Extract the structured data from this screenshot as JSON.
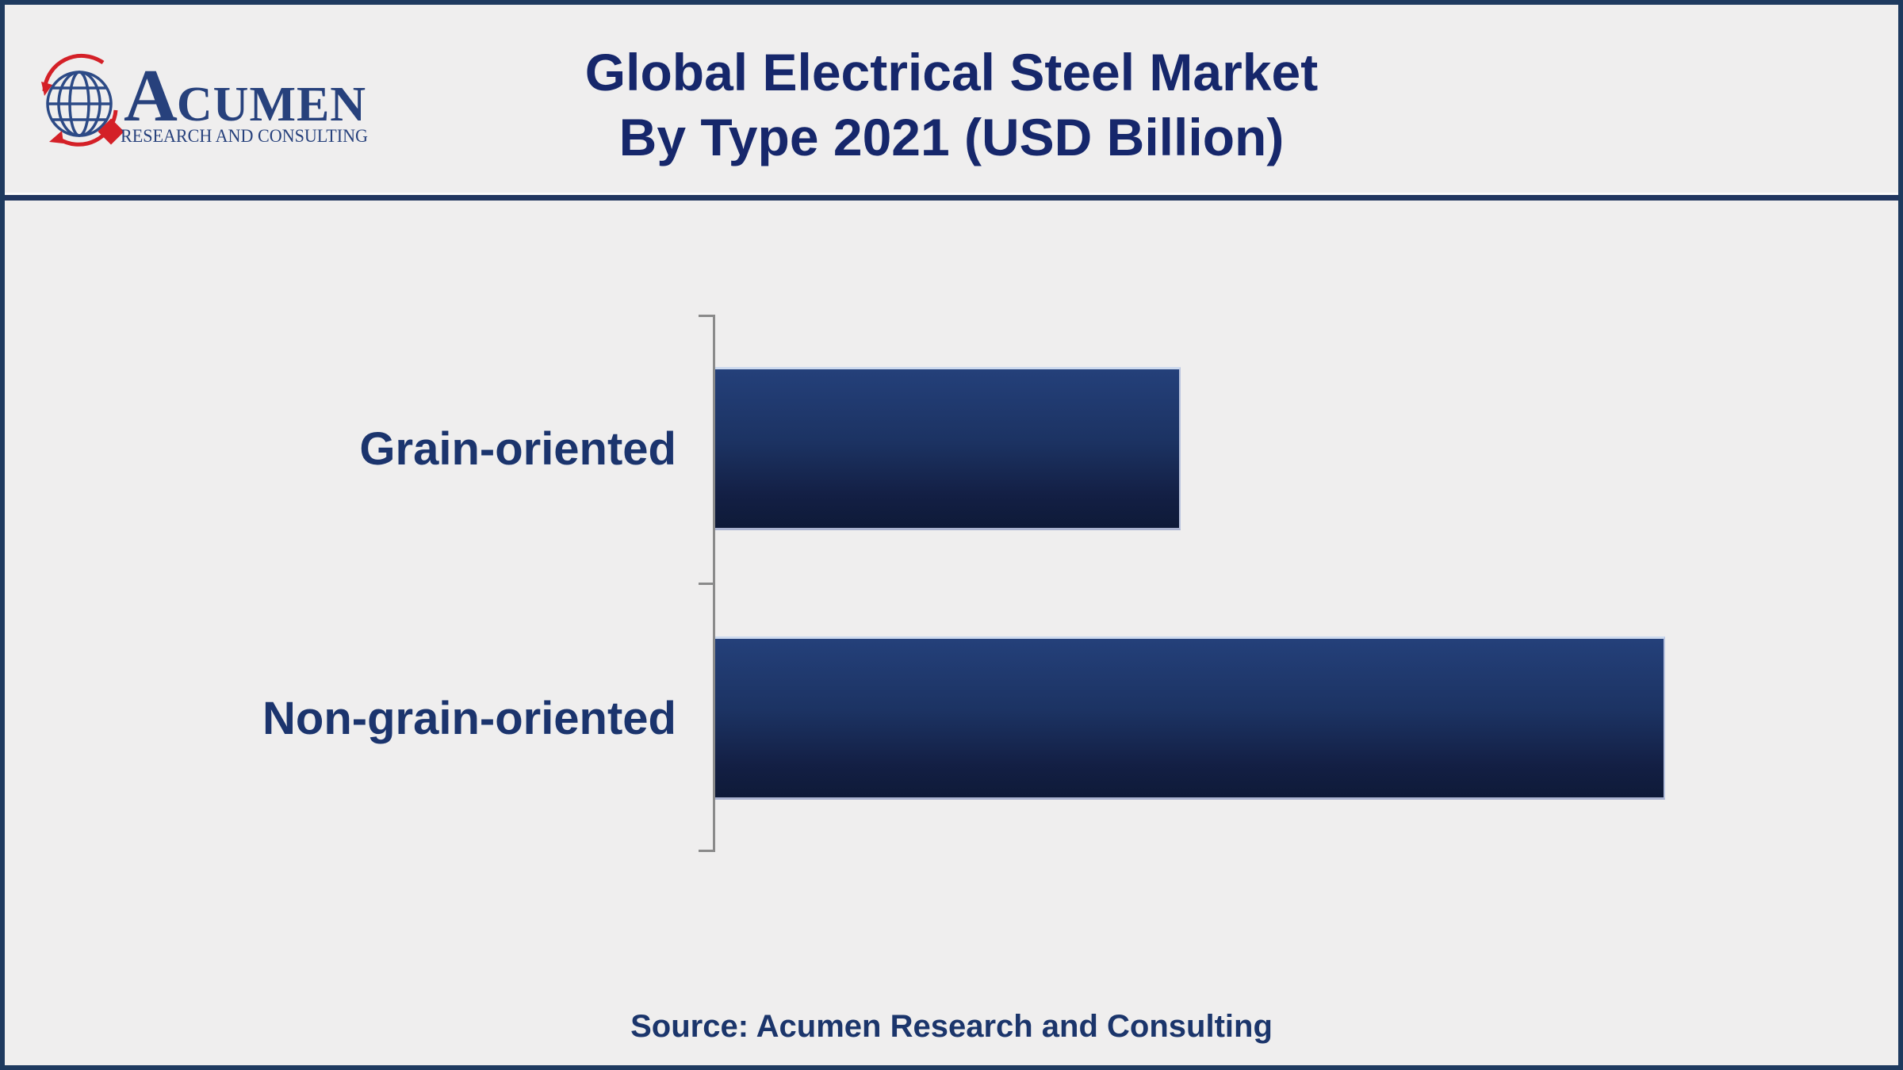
{
  "header": {
    "logo": {
      "brand_initial": "A",
      "brand_rest": "CUMEN",
      "tagline": "RESEARCH AND CONSULTING"
    },
    "title_line1": "Global Electrical Steel Market",
    "title_line2": "By Type 2021 (USD Billion)"
  },
  "chart_data": {
    "type": "bar",
    "orientation": "horizontal",
    "title": "Global Electrical Steel Market By Type 2021 (USD Billion)",
    "categories": [
      "Grain-oriented",
      "Non-grain-oriented"
    ],
    "values": [
      49,
      100
    ],
    "value_scale_note": "no numeric axis, gridlines or data labels shown; values are relative bar lengths (Non-grain-oriented is about 2x Grain-oriented)",
    "value_labels_shown": false,
    "gridlines": false,
    "legend": "none",
    "xlabel": "",
    "ylabel": "",
    "bar_gradient_top": "#24407a",
    "bar_gradient_mid": "#1c3363",
    "bar_gradient_bottom": "#0e1a38",
    "category_axis_color": "#8a8a8a"
  },
  "footer": {
    "source_text": "Source: Acumen Research and Consulting"
  },
  "colors": {
    "page_background": "#efeeee",
    "frame_border": "#1e3a5f",
    "header_divider": "#21365f",
    "title_text": "#16276b",
    "category_label_text": "#1b346d",
    "source_text": "#1b356b",
    "logo_blue": "#27417c",
    "logo_red": "#d42027"
  }
}
